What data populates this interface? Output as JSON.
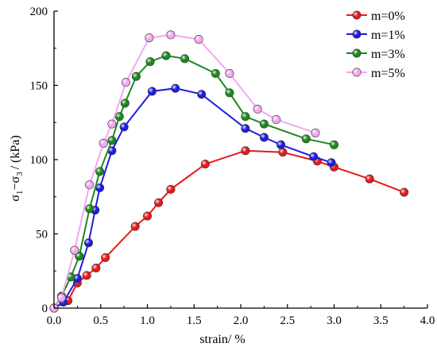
{
  "chart_data": {
    "type": "line",
    "xlabel": "strain/ %",
    "ylabel_parts": {
      "sigma": "σ",
      "sub1": "1",
      "dash": "−σ",
      "sub3": "3",
      "tail": "/ (kPa)"
    },
    "xlim": [
      0.0,
      4.0
    ],
    "ylim": [
      0,
      200
    ],
    "x_ticks": [
      "0.0",
      "0.5",
      "1.0",
      "1.5",
      "2.0",
      "2.5",
      "3.0",
      "3.5",
      "4.0"
    ],
    "y_ticks": [
      "0",
      "50",
      "100",
      "150",
      "200"
    ],
    "legend_position": "top-right",
    "grid": false,
    "series": [
      {
        "name": "m=0%",
        "color": "#e8181a",
        "x": [
          0.0,
          0.15,
          0.25,
          0.35,
          0.45,
          0.55,
          0.87,
          1.0,
          1.12,
          1.25,
          1.62,
          2.05,
          2.45,
          2.82,
          3.0,
          3.38,
          3.75
        ],
        "y": [
          0,
          5,
          17,
          22,
          27,
          34,
          55,
          62,
          71,
          80,
          97,
          106,
          105,
          99,
          95,
          87,
          78
        ]
      },
      {
        "name": "m=1%",
        "color": "#1c1ce0",
        "x": [
          0.0,
          0.1,
          0.25,
          0.37,
          0.44,
          0.49,
          0.62,
          0.75,
          1.05,
          1.3,
          1.58,
          2.05,
          2.25,
          2.43,
          2.78,
          2.97
        ],
        "y": [
          0,
          4,
          20,
          44,
          66,
          81,
          106,
          122,
          146,
          148,
          144,
          121,
          115,
          110,
          102,
          98
        ]
      },
      {
        "name": "m=3%",
        "color": "#1a8a1a",
        "x": [
          0.0,
          0.08,
          0.18,
          0.27,
          0.38,
          0.49,
          0.62,
          0.7,
          0.76,
          0.88,
          1.03,
          1.2,
          1.4,
          1.73,
          1.88,
          2.05,
          2.25,
          2.7,
          3.0
        ],
        "y": [
          0,
          8,
          21,
          35,
          67,
          92,
          113,
          129,
          138,
          156,
          166,
          170,
          168,
          158,
          145,
          129,
          124,
          114,
          110
        ]
      },
      {
        "name": "m=5%",
        "color": "#f2a8f0",
        "x": [
          0.0,
          0.08,
          0.22,
          0.38,
          0.53,
          0.62,
          0.77,
          1.02,
          1.25,
          1.55,
          1.88,
          2.18,
          2.38,
          2.8
        ],
        "y": [
          0,
          7,
          39,
          83,
          111,
          124,
          152,
          182,
          184,
          181,
          158,
          134,
          127,
          118
        ]
      }
    ]
  }
}
